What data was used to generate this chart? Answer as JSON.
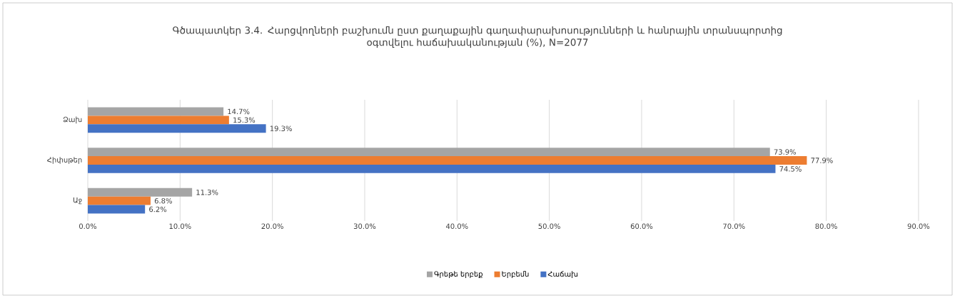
{
  "chart_data": {
    "type": "bar",
    "orientation": "horizontal",
    "title": "Գծապատկեր 3.4. Հարցվողների բաշխումն ըստ քաղաքային գաղափարախոսությունների և հանրային տրանսպորտից օգտվելու հաճախականության (%), N=2077",
    "categories": [
      "Ձախ",
      "Հիփսթեր",
      "Աջ"
    ],
    "series": [
      {
        "name": "Գրեթե երբեք",
        "color": "#a5a5a5",
        "values": [
          14.7,
          73.9,
          11.3
        ],
        "value_labels": [
          "14.7%",
          "73.9%",
          "11.3%"
        ]
      },
      {
        "name": "Երբեմն",
        "color": "#ed7d31",
        "values": [
          15.3,
          77.9,
          6.8
        ],
        "value_labels": [
          "15.3%",
          "77.9%",
          "6.8%"
        ]
      },
      {
        "name": "Հաճախ",
        "color": "#4472c4",
        "values": [
          19.3,
          74.5,
          6.2
        ],
        "value_labels": [
          "19.3%",
          "74.5%",
          "6.2%"
        ]
      }
    ],
    "xlim": [
      0,
      90
    ],
    "xticks": [
      {
        "value": 0,
        "label": "0.0%"
      },
      {
        "value": 10,
        "label": "10.0%"
      },
      {
        "value": 20,
        "label": "20.0%"
      },
      {
        "value": 30,
        "label": "30.0%"
      },
      {
        "value": 40,
        "label": "40.0%"
      },
      {
        "value": 50,
        "label": "50.0%"
      },
      {
        "value": 60,
        "label": "60.0%"
      },
      {
        "value": 70,
        "label": "70.0%"
      },
      {
        "value": 80,
        "label": "80.0%"
      },
      {
        "value": 90,
        "label": "90.0%"
      }
    ],
    "grid": "x",
    "legend": "bottom"
  }
}
